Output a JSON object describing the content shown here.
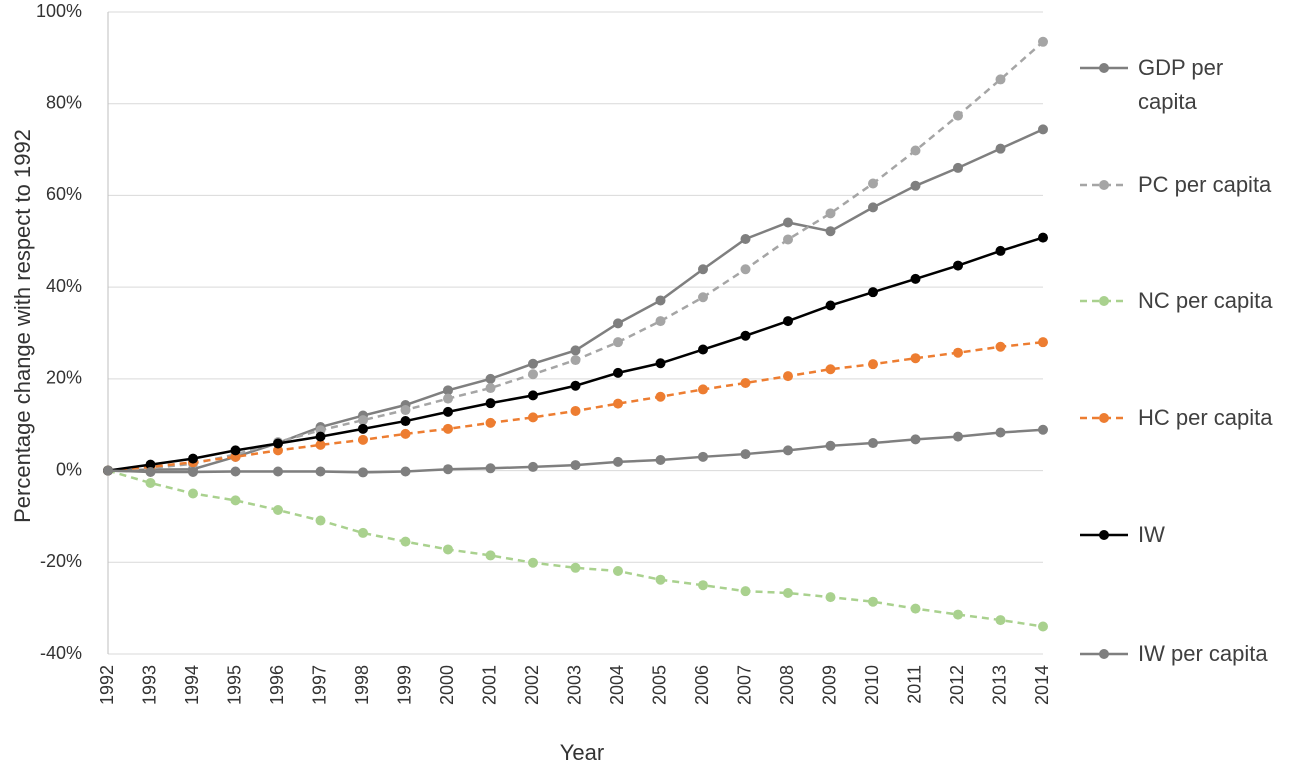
{
  "chart_data": {
    "type": "line",
    "y_label": "Percentage change with respect to 1992",
    "x_label": "Year",
    "categories": [
      "1992",
      "1993",
      "1994",
      "1995",
      "1996",
      "1997",
      "1998",
      "1999",
      "2000",
      "2001",
      "2002",
      "2003",
      "2004",
      "2005",
      "2006",
      "2007",
      "2008",
      "2009",
      "2010",
      "2011",
      "2012",
      "2013",
      "2014"
    ],
    "ylim": [
      -40,
      100
    ],
    "yticks": [
      {
        "value": -40,
        "label": "-40%"
      },
      {
        "value": -20,
        "label": "-20%"
      },
      {
        "value": 0,
        "label": "0%"
      },
      {
        "value": 20,
        "label": "20%"
      },
      {
        "value": 40,
        "label": "40%"
      },
      {
        "value": 60,
        "label": "60%"
      },
      {
        "value": 80,
        "label": "80%"
      },
      {
        "value": 100,
        "label": "100%"
      }
    ],
    "grid": true,
    "legend_position": "right",
    "series": [
      {
        "name": "GDP per capita",
        "color": "#7f7f7f",
        "dashed": false,
        "values": [
          0,
          0.2,
          0.3,
          3,
          6,
          9.5,
          12,
          14.3,
          17.5,
          20,
          23.3,
          26.2,
          32.1,
          37.1,
          43.9,
          50.5,
          54.1,
          52.2,
          57.4,
          62.1,
          66,
          70.2,
          74.4
        ]
      },
      {
        "name": "PC per capita",
        "color": "#a5a5a5",
        "dashed": true,
        "values": [
          0,
          0.5,
          1.5,
          3.5,
          6.2,
          8.8,
          11,
          13.2,
          15.7,
          18,
          21,
          24.1,
          28,
          32.6,
          37.8,
          43.9,
          50.4,
          56.1,
          62.6,
          69.8,
          77.4,
          85.3,
          93.5
        ]
      },
      {
        "name": "NC per capita",
        "color": "#a9d18e",
        "dashed": true,
        "values": [
          0,
          -2.7,
          -5,
          -6.5,
          -8.6,
          -10.9,
          -13.6,
          -15.5,
          -17.2,
          -18.5,
          -20.1,
          -21.2,
          -21.9,
          -23.8,
          -25,
          -26.3,
          -26.7,
          -27.6,
          -28.6,
          -30.1,
          -31.4,
          -32.6,
          -34
        ]
      },
      {
        "name": "HC per capita",
        "color": "#ed7d31",
        "dashed": true,
        "values": [
          0,
          0.8,
          1.8,
          3,
          4.4,
          5.6,
          6.7,
          8,
          9.1,
          10.4,
          11.6,
          13,
          14.6,
          16.1,
          17.7,
          19.1,
          20.6,
          22.1,
          23.2,
          24.5,
          25.7,
          27,
          28
        ]
      },
      {
        "name": "IW",
        "color": "#000000",
        "dashed": false,
        "values": [
          0,
          1.3,
          2.6,
          4.4,
          5.9,
          7.4,
          9.1,
          10.8,
          12.8,
          14.7,
          16.4,
          18.5,
          21.3,
          23.4,
          26.4,
          29.4,
          32.6,
          36,
          38.9,
          41.8,
          44.7,
          47.9,
          50.8
        ]
      },
      {
        "name": "IW per capita",
        "color": "#7f7f7f",
        "dashed": false,
        "values": [
          0,
          -0.3,
          -0.3,
          -0.2,
          -0.2,
          -0.2,
          -0.4,
          -0.2,
          0.3,
          0.5,
          0.8,
          1.2,
          1.9,
          2.3,
          3,
          3.6,
          4.4,
          5.4,
          6,
          6.8,
          7.4,
          8.3,
          8.9
        ]
      }
    ]
  }
}
